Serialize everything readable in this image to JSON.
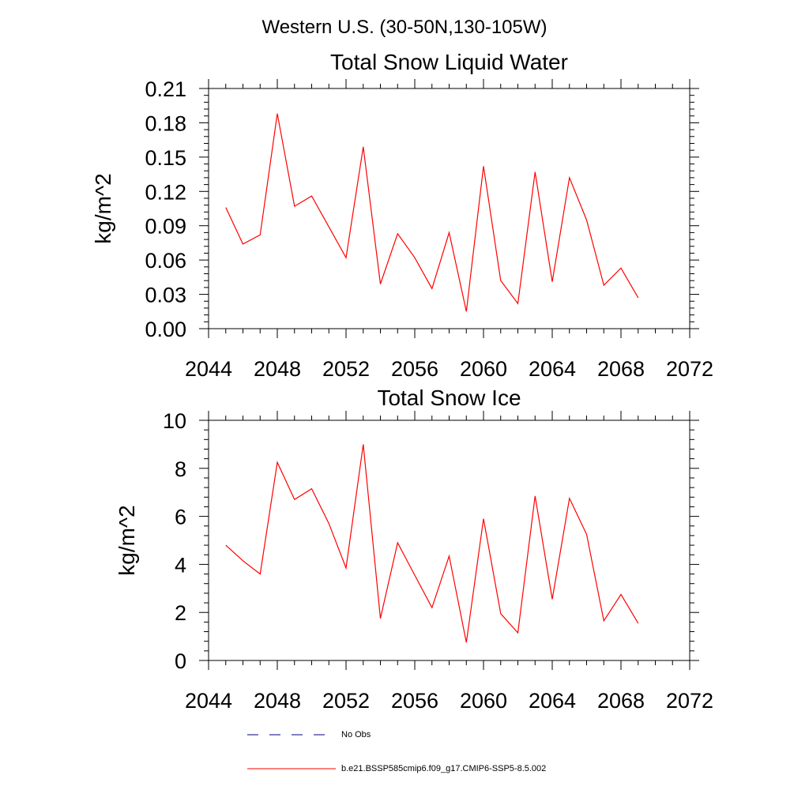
{
  "page": {
    "super_title": "Western U.S. (30-50N,130-105W)"
  },
  "chart_data": [
    {
      "type": "line",
      "title": "Total Snow Liquid Water",
      "xlabel": "",
      "ylabel": "kg/m^2",
      "xlim": [
        2044,
        2072
      ],
      "ylim": [
        0,
        0.21
      ],
      "xticks": [
        2044,
        2048,
        2052,
        2056,
        2060,
        2064,
        2068,
        2072
      ],
      "xtick_labels": [
        "2044",
        "2048",
        "2052",
        "2056",
        "2060",
        "2064",
        "2068",
        "2072"
      ],
      "yticks": [
        0,
        0.03,
        0.06,
        0.09,
        0.12,
        0.15,
        0.18,
        0.21
      ],
      "ytick_labels": [
        "0.00",
        "0.03",
        "0.06",
        "0.09",
        "0.12",
        "0.15",
        "0.18",
        "0.21"
      ],
      "grid": false,
      "series": [
        {
          "name": "b.e21.BSSP585cmip6.f09_g17.CMIP6-SSP5-8.5.002",
          "color": "#ff0000",
          "x": [
            2045,
            2046,
            2047,
            2048,
            2049,
            2050,
            2051,
            2052,
            2053,
            2054,
            2055,
            2056,
            2057,
            2058,
            2059,
            2060,
            2061,
            2062,
            2063,
            2064,
            2065,
            2066,
            2067,
            2068,
            2069
          ],
          "y": [
            0.106,
            0.074,
            0.082,
            0.188,
            0.107,
            0.116,
            0.089,
            0.062,
            0.159,
            0.039,
            0.083,
            0.062,
            0.035,
            0.084,
            0.015,
            0.142,
            0.042,
            0.022,
            0.137,
            0.041,
            0.132,
            0.095,
            0.038,
            0.053,
            0.027
          ]
        }
      ]
    },
    {
      "type": "line",
      "title": "Total Snow Ice",
      "xlabel": "",
      "ylabel": "kg/m^2",
      "xlim": [
        2044,
        2072
      ],
      "ylim": [
        0,
        10
      ],
      "xticks": [
        2044,
        2048,
        2052,
        2056,
        2060,
        2064,
        2068,
        2072
      ],
      "xtick_labels": [
        "2044",
        "2048",
        "2052",
        "2056",
        "2060",
        "2064",
        "2068",
        "2072"
      ],
      "yticks": [
        0,
        2,
        4,
        6,
        8,
        10
      ],
      "ytick_labels": [
        "0",
        "2",
        "4",
        "6",
        "8",
        "10"
      ],
      "grid": false,
      "series": [
        {
          "name": "b.e21.BSSP585cmip6.f09_g17.CMIP6-SSP5-8.5.002",
          "color": "#ff0000",
          "x": [
            2045,
            2046,
            2047,
            2048,
            2049,
            2050,
            2051,
            2052,
            2053,
            2054,
            2055,
            2056,
            2057,
            2058,
            2059,
            2060,
            2061,
            2062,
            2063,
            2064,
            2065,
            2066,
            2067,
            2068,
            2069
          ],
          "y": [
            4.8,
            4.15,
            3.6,
            8.25,
            6.7,
            7.15,
            5.7,
            3.85,
            9.0,
            1.75,
            4.9,
            3.55,
            2.2,
            4.35,
            0.75,
            5.9,
            1.95,
            1.15,
            6.85,
            2.55,
            6.75,
            5.25,
            1.65,
            2.75,
            1.55
          ]
        }
      ]
    }
  ],
  "legend": {
    "placement": "bottom",
    "items": [
      {
        "label": "No Obs",
        "color": "#000080",
        "style": "dashed"
      },
      {
        "label": "b.e21.BSSP585cmip6.f09_g17.CMIP6-SSP5-8.5.002",
        "color": "#ff0000",
        "style": "solid"
      }
    ]
  }
}
